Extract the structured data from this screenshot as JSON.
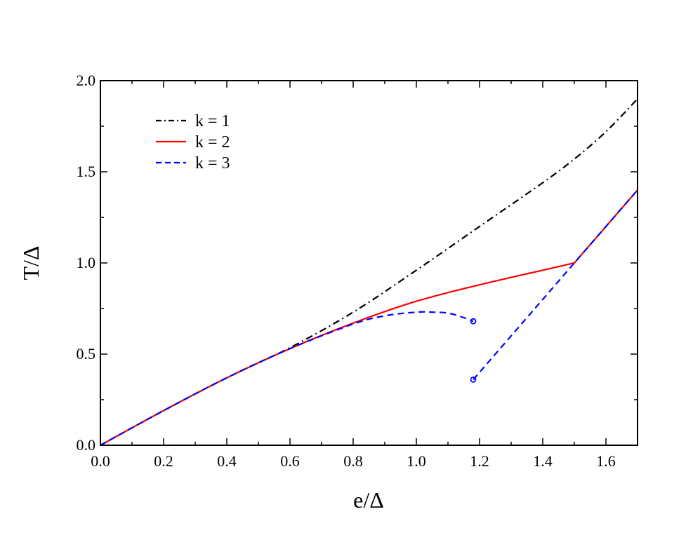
{
  "chart_data": {
    "type": "line",
    "xlabel": "e/Δ",
    "ylabel": "T/Δ",
    "xlim": [
      0.0,
      1.7
    ],
    "ylim": [
      0.0,
      2.0
    ],
    "xticks": [
      "0.0",
      "0.2",
      "0.4",
      "0.6",
      "0.8",
      "1.0",
      "1.2",
      "1.4",
      "1.6"
    ],
    "yticks": [
      "0.0",
      "0.5",
      "1.0",
      "1.5",
      "2.0"
    ],
    "grid": false,
    "legend_position": "top-left",
    "series": [
      {
        "name": "k = 1",
        "color": "#000000",
        "style": "dash-dot",
        "x": [
          0.0,
          0.2,
          0.4,
          0.6,
          0.8,
          1.0,
          1.2,
          1.4,
          1.5,
          1.6,
          1.7
        ],
        "y": [
          0.0,
          0.19,
          0.37,
          0.535,
          0.73,
          0.96,
          1.2,
          1.44,
          1.57,
          1.72,
          1.9
        ]
      },
      {
        "name": "k = 2",
        "color": "#ff0000",
        "style": "solid",
        "x": [
          0.0,
          0.2,
          0.4,
          0.6,
          0.8,
          1.0,
          1.2,
          1.4,
          1.5,
          1.7
        ],
        "y": [
          0.0,
          0.19,
          0.37,
          0.53,
          0.67,
          0.79,
          0.88,
          0.96,
          1.0,
          1.4
        ]
      },
      {
        "name": "k = 3",
        "color": "#0000ff",
        "style": "dashed",
        "segments": [
          {
            "x": [
              0.0,
              0.2,
              0.4,
              0.6,
              0.8,
              0.9,
              1.0,
              1.05,
              1.1,
              1.15,
              1.18
            ],
            "y": [
              0.0,
              0.19,
              0.37,
              0.53,
              0.665,
              0.71,
              0.73,
              0.73,
              0.725,
              0.7,
              0.68
            ]
          },
          {
            "x": [
              1.18,
              1.5,
              1.7
            ],
            "y": [
              0.36,
              1.0,
              1.4
            ]
          }
        ],
        "markers": [
          {
            "x": 1.18,
            "y": 0.68
          },
          {
            "x": 1.18,
            "y": 0.36
          }
        ]
      }
    ]
  }
}
